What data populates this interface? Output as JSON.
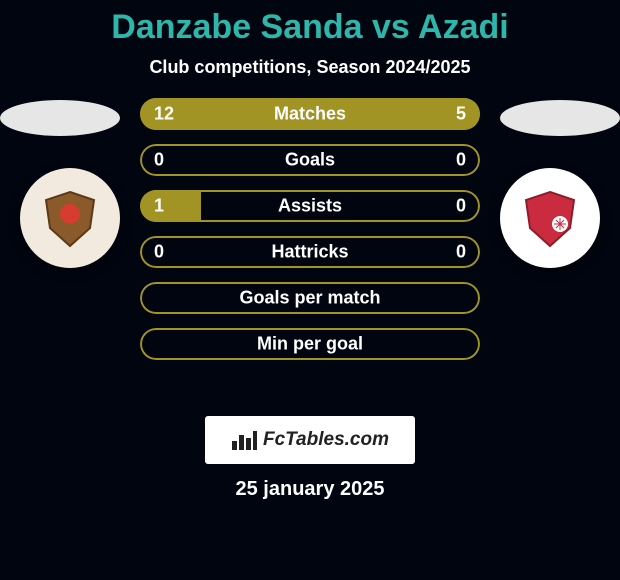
{
  "background_color": "#000510",
  "title": {
    "text": "Danzabe Sanda vs Azadi",
    "color": "#2fb6ab",
    "fontsize": 34
  },
  "subtitle": {
    "text": "Club competitions, Season 2024/2025",
    "color": "#ffffff",
    "fontsize": 18
  },
  "ellipse_color": "#e6e6e6",
  "crests": {
    "left": {
      "bg": "#f2e9df",
      "inner_bg": "#8a5a2b",
      "accent": "#d63c2f"
    },
    "right": {
      "bg": "#ffffff",
      "inner_bg": "#ca2b3f",
      "accent": "#ffffff"
    }
  },
  "bar_style": {
    "height": 32,
    "gap": 14,
    "radius": 16,
    "fontsize": 18,
    "label_color": "#ffffff",
    "value_color": "#ffffff",
    "outline_width": 2,
    "left_fill_color": "#a29325",
    "right_fill_color": "#a29325",
    "outline_color": "#a29325",
    "track_color": "transparent"
  },
  "bars": [
    {
      "label": "Matches",
      "left_value": "12",
      "right_value": "5",
      "left_pct": 70,
      "right_pct": 30
    },
    {
      "label": "Goals",
      "left_value": "0",
      "right_value": "0",
      "left_pct": 0,
      "right_pct": 0
    },
    {
      "label": "Assists",
      "left_value": "1",
      "right_value": "0",
      "left_pct": 18,
      "right_pct": 0
    },
    {
      "label": "Hattricks",
      "left_value": "0",
      "right_value": "0",
      "left_pct": 0,
      "right_pct": 0
    },
    {
      "label": "Goals per match",
      "left_value": "",
      "right_value": "",
      "left_pct": 0,
      "right_pct": 0
    },
    {
      "label": "Min per goal",
      "left_value": "",
      "right_value": "",
      "left_pct": 0,
      "right_pct": 0
    }
  ],
  "brand": {
    "text": "FcTables.com",
    "bg": "#ffffff",
    "text_color": "#222222",
    "icon_color": "#222222"
  },
  "date": {
    "text": "25 january 2025",
    "color": "#ffffff",
    "fontsize": 20
  }
}
